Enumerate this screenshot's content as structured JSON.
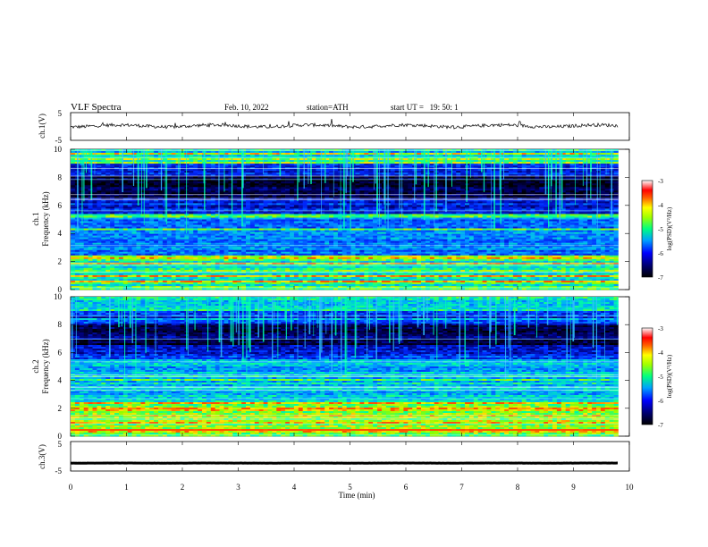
{
  "header": {
    "title": "VLF Spectra",
    "date": "Feb. 10, 2022",
    "station": "station=ATH",
    "start": "start UT =   19: 50: 1"
  },
  "chart_data": [
    {
      "type": "line",
      "panel": "ch1-waveform",
      "ylabel": "ch.1(V)",
      "yticks": [
        "5",
        "-5"
      ],
      "ylim": [
        -5,
        5
      ],
      "xlim": [
        0,
        10
      ],
      "data_end_x": 9.8,
      "level": 0.2,
      "line_color": "#000000"
    },
    {
      "type": "heatmap",
      "panel": "ch1-spectrogram",
      "ylabel": "ch.1\nFrequency (kHz)",
      "yticks": [
        "0",
        "2",
        "4",
        "6",
        "8",
        "10"
      ],
      "ylim": [
        0,
        10
      ],
      "xlim": [
        0,
        10
      ],
      "data_end_x": 9.8,
      "colorbar": {
        "label": "log(PSD)(V²/Hz)",
        "ticks": [
          "-3",
          "-4",
          "-5",
          "-6",
          "-7"
        ],
        "range": [
          -7,
          -3
        ]
      }
    },
    {
      "type": "heatmap",
      "panel": "ch2-spectrogram",
      "ylabel": "ch.2\nFrequency (kHz)",
      "yticks": [
        "0",
        "2",
        "4",
        "6",
        "8",
        "10"
      ],
      "ylim": [
        0,
        10
      ],
      "xlim": [
        0,
        10
      ],
      "data_end_x": 9.8,
      "colorbar": {
        "label": "log(PSD)(V²/Hz)",
        "ticks": [
          "-3",
          "-4",
          "-5",
          "-6",
          "-7"
        ],
        "range": [
          -7,
          -3
        ]
      }
    },
    {
      "type": "line",
      "panel": "ch3-waveform",
      "ylabel": "ch.3(V)",
      "yticks": [
        "5",
        "-5"
      ],
      "ylim": [
        -5,
        5
      ],
      "xlim": [
        0,
        10
      ],
      "data_end_x": 9.8,
      "level": -2.3,
      "line_color": "#000000"
    }
  ],
  "xaxis": {
    "label": "Time (min)",
    "ticks": [
      "0",
      "1",
      "2",
      "3",
      "4",
      "5",
      "6",
      "7",
      "8",
      "9",
      "10"
    ]
  }
}
